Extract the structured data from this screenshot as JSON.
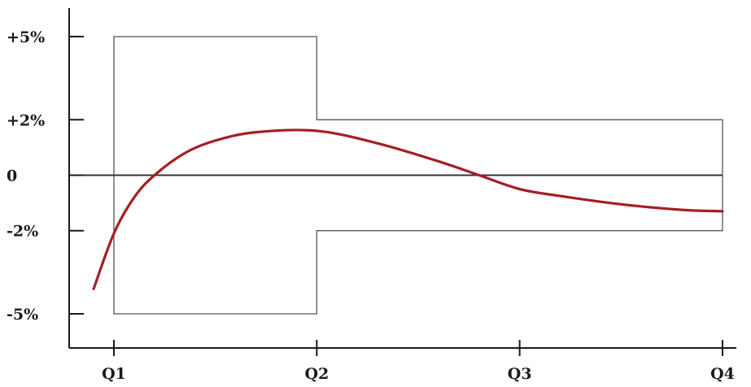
{
  "chart_data": {
    "type": "line",
    "title": "",
    "xlabel": "",
    "ylabel": "",
    "x_categories": [
      "Q1",
      "Q2",
      "Q3",
      "Q4"
    ],
    "y_ticks": [
      {
        "value": 5,
        "label": "+5%"
      },
      {
        "value": 2,
        "label": "+2%"
      },
      {
        "value": 0,
        "label": "0"
      },
      {
        "value": -2,
        "label": "-2%"
      },
      {
        "value": -5,
        "label": "-5%"
      }
    ],
    "ylim": [
      -6.2,
      5.9
    ],
    "xlim": [
      0.7,
      4.05
    ],
    "grid": false,
    "tolerance_band": [
      {
        "x_start": 1,
        "x_end": 2,
        "lower": -5,
        "upper": 5
      },
      {
        "x_start": 2,
        "x_end": 4,
        "lower": -2,
        "upper": 2
      }
    ],
    "series": [
      {
        "color": "#a31f24",
        "x": [
          0.9,
          1.0,
          1.1,
          1.2,
          1.35,
          1.5,
          1.7,
          2.0,
          2.3,
          2.6,
          2.8,
          3.0,
          3.2,
          3.5,
          3.8,
          4.0
        ],
        "y": [
          -4.1,
          -2.1,
          -0.8,
          0.0,
          0.8,
          1.25,
          1.55,
          1.6,
          1.15,
          0.5,
          0.0,
          -0.5,
          -0.75,
          -1.05,
          -1.25,
          -1.3
        ]
      }
    ],
    "colors": {
      "axis": "#1a1a1a",
      "band": "#555555",
      "zero_line": "#333333"
    }
  }
}
